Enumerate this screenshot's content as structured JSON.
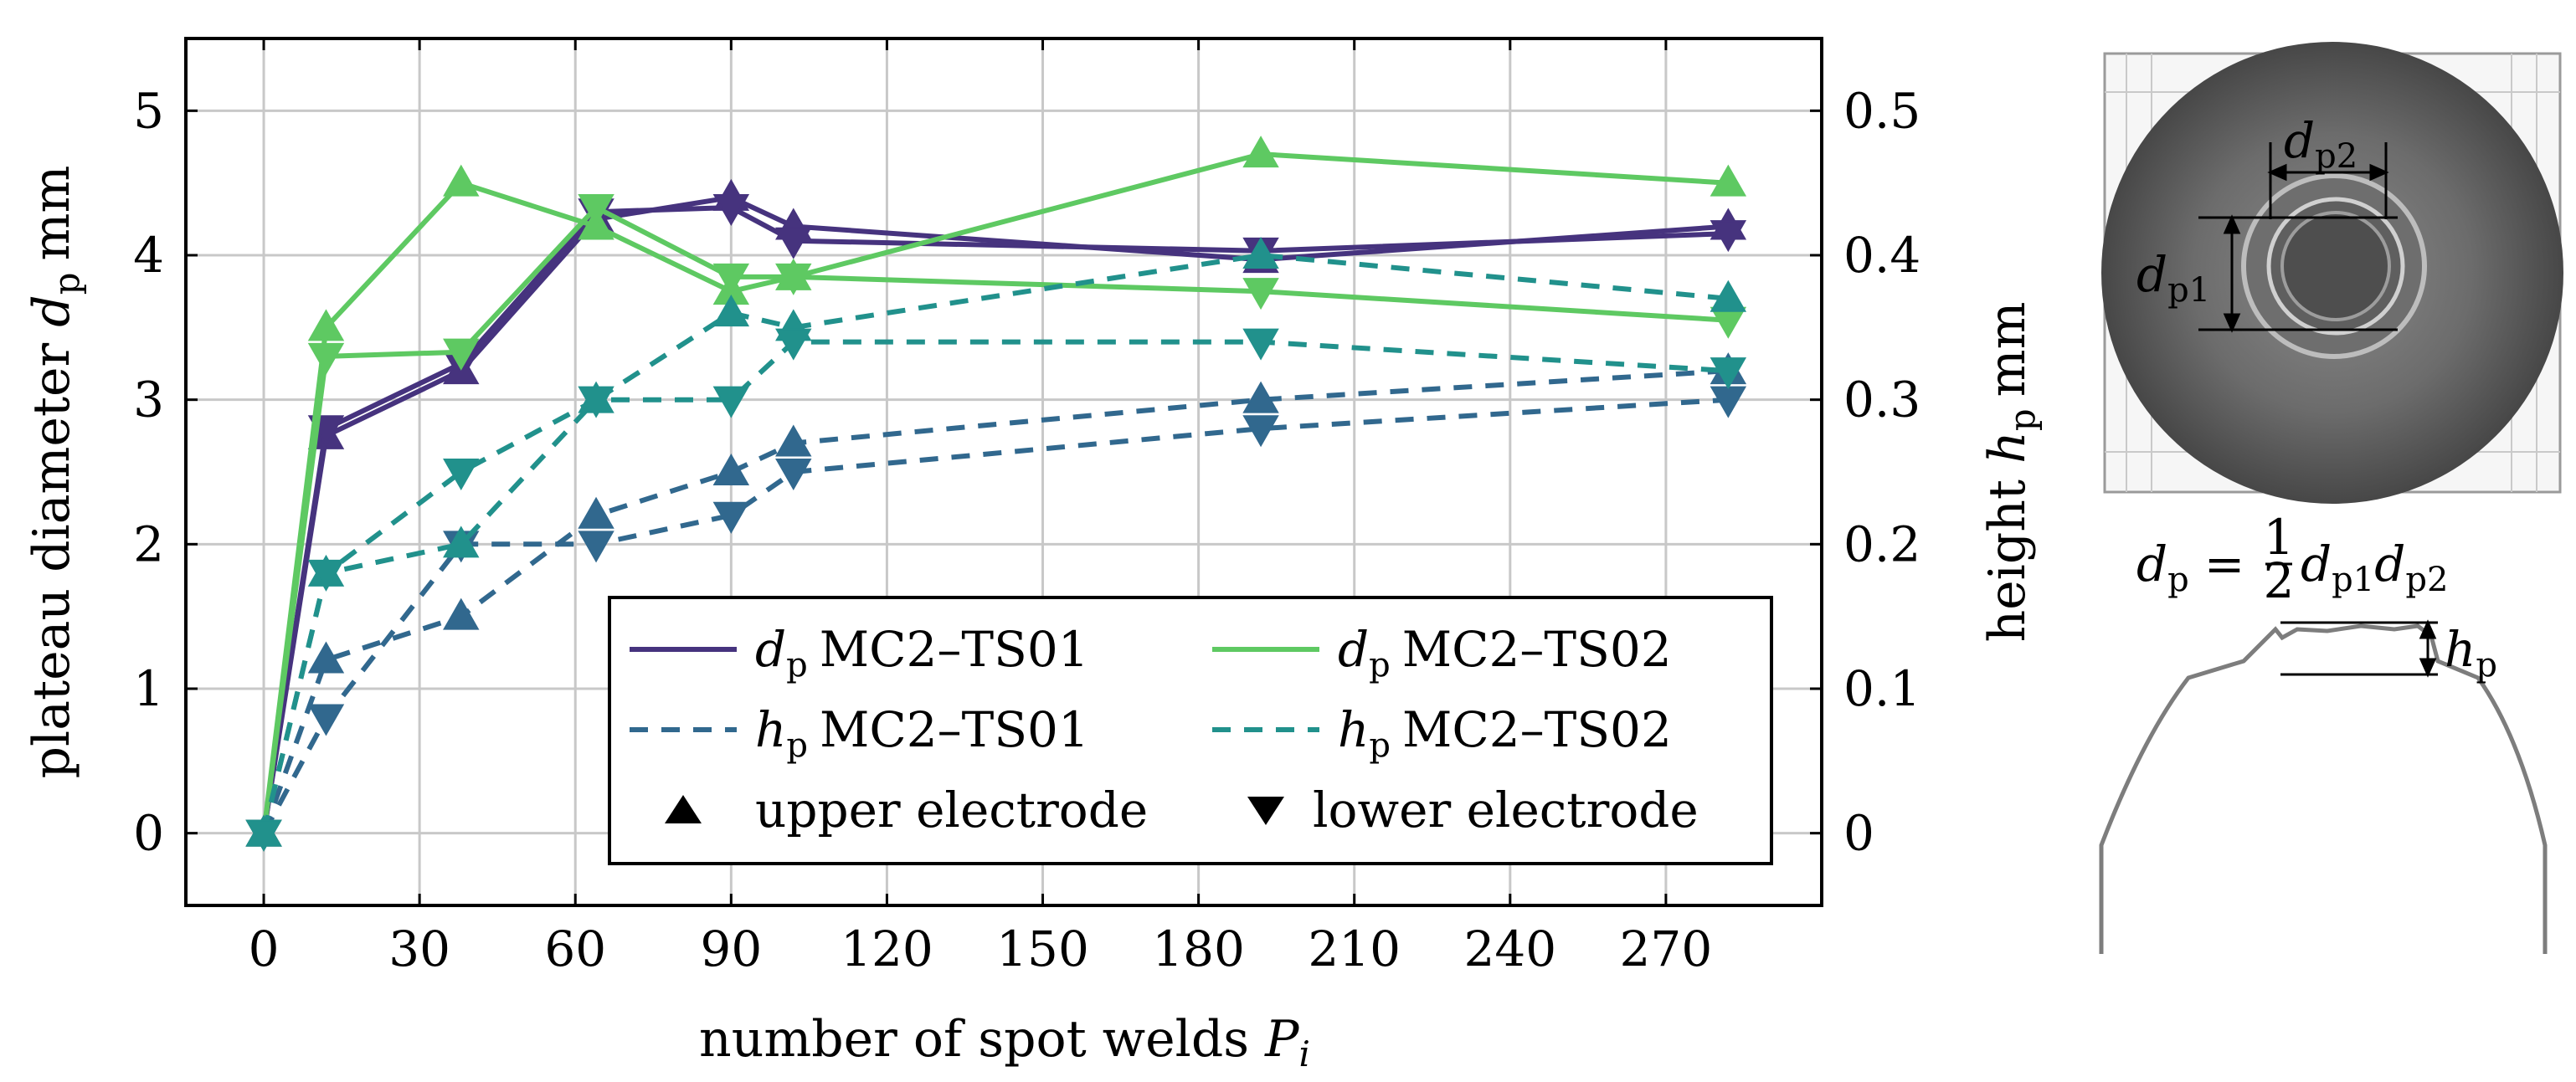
{
  "chart_data": {
    "type": "line",
    "xlabel": "number of spot welds",
    "xlabel_var": "P",
    "xlabel_sub": "i",
    "ylabel_left": "plateau diameter",
    "ylabel_left_var": "d",
    "ylabel_left_sub": "p",
    "ylabel_left_unit": "mm",
    "ylabel_right": "height",
    "ylabel_right_var": "h",
    "ylabel_right_sub": "p",
    "ylabel_right_unit": "mm",
    "xlim": [
      -15,
      300
    ],
    "ylim_left": [
      -0.5,
      5.5
    ],
    "ylim_right": [
      -0.05,
      0.55
    ],
    "xticks": [
      0,
      30,
      60,
      90,
      120,
      150,
      180,
      210,
      240,
      270
    ],
    "yticks_left": [
      0,
      1,
      2,
      3,
      4,
      5
    ],
    "yticks_right": [
      "0",
      "0.1",
      "0.2",
      "0.3",
      "0.4",
      "0.5"
    ],
    "grid": true,
    "legend_position": "bottom-right",
    "legend": [
      {
        "var": "d",
        "sub": "p",
        "label": "MC2–TS01",
        "style": "solid",
        "color": "#46337e"
      },
      {
        "var": "d",
        "sub": "p",
        "label": "MC2–TS02",
        "style": "solid",
        "color": "#5ec962"
      },
      {
        "var": "h",
        "sub": "p",
        "label": "MC2–TS01",
        "style": "dashed",
        "color": "#31688e"
      },
      {
        "var": "h",
        "sub": "p",
        "label": "MC2–TS02",
        "style": "dashed",
        "color": "#21918c"
      },
      {
        "marker": "up",
        "label": "upper electrode"
      },
      {
        "marker": "down",
        "label": "lower electrode"
      }
    ],
    "x": [
      0,
      12,
      38,
      64,
      90,
      102,
      192,
      282
    ],
    "series": [
      {
        "name": "d_p MC2–TS01 upper electrode",
        "axis": "left",
        "color": "#46337e",
        "style": "solid",
        "marker": "up",
        "values": [
          0,
          2.75,
          3.2,
          4.25,
          4.4,
          4.2,
          3.97,
          4.2
        ]
      },
      {
        "name": "d_p MC2–TS01 lower electrode",
        "axis": "left",
        "color": "#46337e",
        "style": "solid",
        "marker": "down",
        "values": [
          0,
          2.8,
          3.25,
          4.3,
          4.33,
          4.1,
          4.03,
          4.15
        ]
      },
      {
        "name": "d_p MC2–TS02 upper electrode",
        "axis": "left",
        "color": "#5ec962",
        "style": "solid",
        "marker": "up",
        "values": [
          0,
          3.5,
          4.5,
          4.2,
          3.75,
          3.85,
          4.7,
          4.5
        ]
      },
      {
        "name": "d_p MC2–TS02 lower electrode",
        "axis": "left",
        "color": "#5ec962",
        "style": "solid",
        "marker": "down",
        "values": [
          0,
          3.3,
          3.33,
          4.33,
          3.85,
          3.85,
          3.75,
          3.55
        ]
      },
      {
        "name": "h_p MC2–TS01 upper electrode",
        "axis": "right",
        "color": "#31688e",
        "style": "dashed",
        "marker": "up",
        "values": [
          0,
          0.12,
          0.15,
          0.22,
          0.25,
          0.27,
          0.3,
          0.32
        ]
      },
      {
        "name": "h_p MC2–TS01 lower electrode",
        "axis": "right",
        "color": "#31688e",
        "style": "dashed",
        "marker": "down",
        "values": [
          0,
          0.08,
          0.2,
          0.2,
          0.22,
          0.25,
          0.28,
          0.3
        ]
      },
      {
        "name": "h_p MC2–TS02 upper electrode",
        "axis": "right",
        "color": "#21918c",
        "style": "dashed",
        "marker": "up",
        "values": [
          0,
          0.18,
          0.2,
          0.3,
          0.36,
          0.35,
          0.4,
          0.37
        ]
      },
      {
        "name": "h_p MC2–TS02 lower electrode",
        "axis": "right",
        "color": "#21918c",
        "style": "dashed",
        "marker": "down",
        "values": [
          0,
          0.18,
          0.25,
          0.3,
          0.3,
          0.34,
          0.34,
          0.32
        ]
      }
    ]
  },
  "illustration": {
    "top_labels": {
      "dp1": {
        "var": "d",
        "sub": "p1"
      },
      "dp2": {
        "var": "d",
        "sub": "p2"
      }
    },
    "formula": {
      "lhs_var": "d",
      "lhs_sub": "p",
      "eq": "=",
      "frac_num": "1",
      "frac_den": "2",
      "t1_var": "d",
      "t1_sub": "p1",
      "t2_var": "d",
      "t2_sub": "p2"
    },
    "profile_label": {
      "var": "h",
      "sub": "p"
    }
  }
}
